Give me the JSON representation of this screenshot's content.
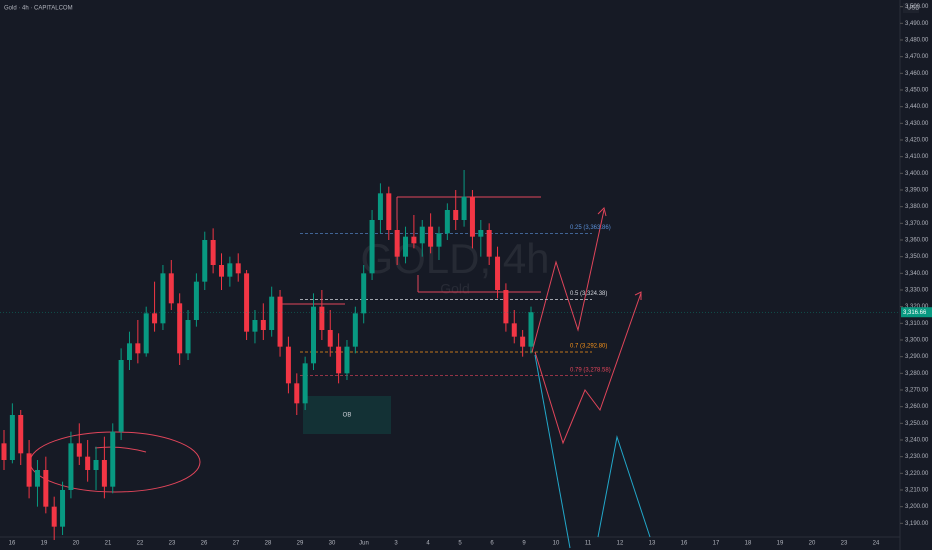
{
  "chart_data": {
    "type": "candlestick",
    "title": "Gold · 4h · CAPITALCOM",
    "currency": "USD",
    "watermark": "GOLD, 4h",
    "watermark_subtitle": "Gold",
    "up_color": "#089981",
    "down_color": "#f23645",
    "ylim": [
      3183,
      3504
    ],
    "yticks": [
      {
        "value": 3190,
        "label": "3,190.00"
      },
      {
        "value": 3200,
        "label": "3,200.00"
      },
      {
        "value": 3210,
        "label": "3,210.00"
      },
      {
        "value": 3220,
        "label": "3,220.00"
      },
      {
        "value": 3230,
        "label": "3,230.00"
      },
      {
        "value": 3240,
        "label": "3,240.00"
      },
      {
        "value": 3250,
        "label": "3,250.00"
      },
      {
        "value": 3260,
        "label": "3,260.00"
      },
      {
        "value": 3270,
        "label": "3,270.00"
      },
      {
        "value": 3280,
        "label": "3,280.00"
      },
      {
        "value": 3290,
        "label": "3,290.00"
      },
      {
        "value": 3300,
        "label": "3,300.00"
      },
      {
        "value": 3310,
        "label": "3,310.00"
      },
      {
        "value": 3320,
        "label": "3,320.00"
      },
      {
        "value": 3330,
        "label": "3,330.00"
      },
      {
        "value": 3340,
        "label": "3,340.00"
      },
      {
        "value": 3350,
        "label": "3,350.00"
      },
      {
        "value": 3360,
        "label": "3,360.00"
      },
      {
        "value": 3370,
        "label": "3,370.00"
      },
      {
        "value": 3380,
        "label": "3,380.00"
      },
      {
        "value": 3390,
        "label": "3,390.00"
      },
      {
        "value": 3400,
        "label": "3,400.00"
      },
      {
        "value": 3410,
        "label": "3,410.00"
      },
      {
        "value": 3420,
        "label": "3,420.00"
      },
      {
        "value": 3430,
        "label": "3,430.00"
      },
      {
        "value": 3440,
        "label": "3,440.00"
      },
      {
        "value": 3450,
        "label": "3,450.00"
      },
      {
        "value": 3460,
        "label": "3,460.00"
      },
      {
        "value": 3470,
        "label": "3,470.00"
      },
      {
        "value": 3480,
        "label": "3,480.00"
      },
      {
        "value": 3490,
        "label": "3,490.00"
      },
      {
        "value": 3500,
        "label": "3,500.00"
      }
    ],
    "categories": [
      "16",
      "19",
      "20",
      "21",
      "22",
      "23",
      "26",
      "27",
      "28",
      "29",
      "30",
      "Jun",
      "3",
      "4",
      "5",
      "6",
      "9",
      "10",
      "11",
      "12",
      "13",
      "16",
      "17",
      "18",
      "19",
      "20",
      "23",
      "24"
    ],
    "candles": [
      [
        3238,
        3246,
        3222,
        3228
      ],
      [
        3228,
        3262,
        3226,
        3255
      ],
      [
        3255,
        3258,
        3225,
        3232
      ],
      [
        3232,
        3240,
        3205,
        3212
      ],
      [
        3212,
        3228,
        3200,
        3222
      ],
      [
        3222,
        3230,
        3196,
        3200
      ],
      [
        3200,
        3206,
        3180,
        3188
      ],
      [
        3188,
        3215,
        3183,
        3210
      ],
      [
        3210,
        3245,
        3205,
        3238
      ],
      [
        3238,
        3250,
        3225,
        3230
      ],
      [
        3230,
        3240,
        3215,
        3222
      ],
      [
        3222,
        3236,
        3210,
        3228
      ],
      [
        3228,
        3242,
        3205,
        3212
      ],
      [
        3212,
        3250,
        3208,
        3245
      ],
      [
        3245,
        3295,
        3240,
        3288
      ],
      [
        3288,
        3305,
        3282,
        3298
      ],
      [
        3298,
        3312,
        3286,
        3292
      ],
      [
        3292,
        3320,
        3290,
        3316
      ],
      [
        3316,
        3335,
        3305,
        3310
      ],
      [
        3310,
        3345,
        3306,
        3340
      ],
      [
        3340,
        3348,
        3318,
        3322
      ],
      [
        3322,
        3328,
        3285,
        3292
      ],
      [
        3292,
        3318,
        3288,
        3312
      ],
      [
        3312,
        3340,
        3308,
        3335
      ],
      [
        3335,
        3365,
        3330,
        3360
      ],
      [
        3360,
        3367,
        3340,
        3345
      ],
      [
        3345,
        3352,
        3330,
        3338
      ],
      [
        3338,
        3350,
        3332,
        3346
      ],
      [
        3346,
        3352,
        3335,
        3340
      ],
      [
        3340,
        3342,
        3300,
        3305
      ],
      [
        3305,
        3318,
        3298,
        3312
      ],
      [
        3312,
        3322,
        3300,
        3306
      ],
      [
        3306,
        3332,
        3302,
        3326
      ],
      [
        3326,
        3330,
        3290,
        3296
      ],
      [
        3296,
        3302,
        3268,
        3274
      ],
      [
        3274,
        3280,
        3255,
        3262
      ],
      [
        3262,
        3290,
        3258,
        3286
      ],
      [
        3286,
        3328,
        3282,
        3320
      ],
      [
        3320,
        3330,
        3300,
        3306
      ],
      [
        3306,
        3318,
        3290,
        3296
      ],
      [
        3296,
        3304,
        3274,
        3280
      ],
      [
        3280,
        3300,
        3276,
        3296
      ],
      [
        3296,
        3320,
        3292,
        3316
      ],
      [
        3316,
        3345,
        3310,
        3340
      ],
      [
        3340,
        3378,
        3336,
        3372
      ],
      [
        3372,
        3394,
        3364,
        3388
      ],
      [
        3388,
        3392,
        3360,
        3366
      ],
      [
        3366,
        3372,
        3345,
        3350
      ],
      [
        3350,
        3368,
        3346,
        3362
      ],
      [
        3362,
        3375,
        3355,
        3358
      ],
      [
        3358,
        3372,
        3350,
        3368
      ],
      [
        3368,
        3376,
        3352,
        3356
      ],
      [
        3356,
        3368,
        3348,
        3364
      ],
      [
        3364,
        3382,
        3360,
        3378
      ],
      [
        3378,
        3390,
        3366,
        3372
      ],
      [
        3372,
        3402,
        3368,
        3386
      ],
      [
        3386,
        3390,
        3355,
        3362
      ],
      [
        3362,
        3372,
        3350,
        3366
      ],
      [
        3366,
        3370,
        3345,
        3350
      ],
      [
        3350,
        3356,
        3325,
        3330
      ],
      [
        3330,
        3334,
        3305,
        3310
      ],
      [
        3310,
        3318,
        3298,
        3302
      ],
      [
        3302,
        3306,
        3290,
        3296
      ],
      [
        3296,
        3320,
        3292,
        3316.66
      ]
    ],
    "last_price": {
      "value": 3316.66,
      "label": "3,316.66"
    },
    "fib_levels": [
      {
        "value": 3363.86,
        "label": "0.25 (3,363.86)",
        "color": "#5b8fd6"
      },
      {
        "value": 3324.38,
        "label": "0.5 (3,324.38)",
        "color": "#d1d4dc"
      },
      {
        "value": 3292.8,
        "label": "0.7 (3,292.80)",
        "color": "#f7931a"
      },
      {
        "value": 3278.58,
        "label": "0.79 (3,278.58)",
        "color": "#e0455a"
      }
    ],
    "zone_label": "OB"
  }
}
